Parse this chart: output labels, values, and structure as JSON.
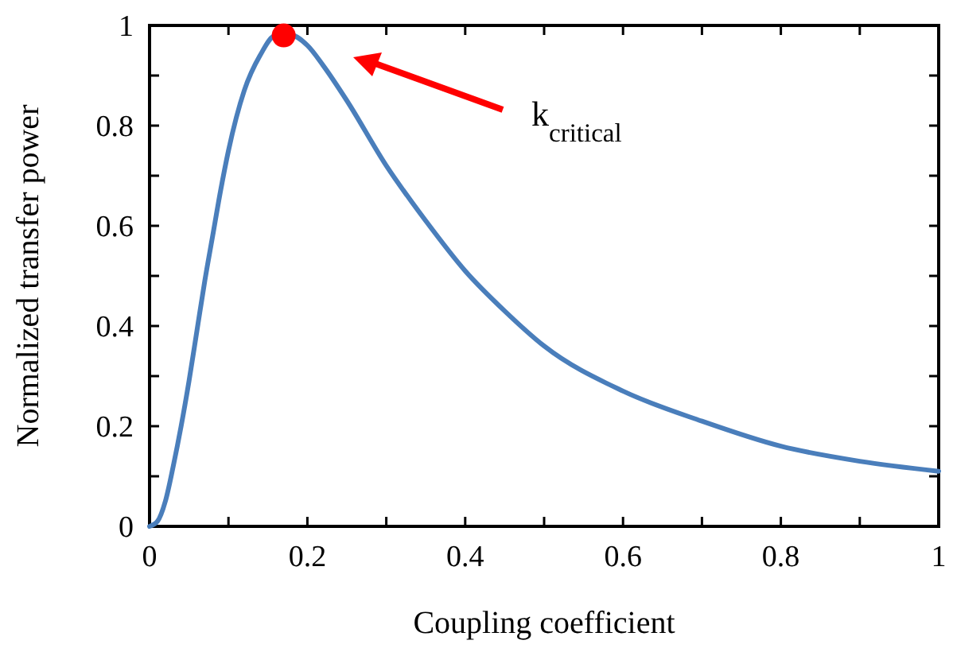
{
  "chart_data": {
    "type": "line",
    "xlabel": "Coupling coefficient",
    "ylabel": "Normalized transfer power",
    "xlim": [
      0,
      1
    ],
    "ylim": [
      0,
      1
    ],
    "xticks": [
      0,
      {
        "value": 0.1,
        "label": null
      },
      0.2,
      {
        "value": 0.3,
        "label": null
      },
      0.4,
      {
        "value": 0.5,
        "label": null
      },
      0.6,
      {
        "value": 0.7,
        "label": null
      },
      0.8,
      {
        "value": 0.9,
        "label": null
      },
      1
    ],
    "yticks": [
      0,
      {
        "value": 0.1,
        "label": null
      },
      0.2,
      {
        "value": 0.3,
        "label": null
      },
      0.4,
      {
        "value": 0.5,
        "label": null
      },
      0.6,
      {
        "value": 0.7,
        "label": null
      },
      0.8,
      {
        "value": 0.9,
        "label": null
      },
      1
    ],
    "grid": false,
    "series": [
      {
        "color": "#4a7ebb",
        "marker": "none",
        "line_style": "solid",
        "x": [
          0,
          0.01,
          0.02,
          0.03,
          0.04,
          0.05,
          0.06,
          0.07,
          0.08,
          0.09,
          0.1,
          0.12,
          0.14,
          0.16,
          0.18,
          0.2,
          0.22,
          0.25,
          0.3,
          0.35,
          0.4,
          0.45,
          0.5,
          0.6,
          0.7,
          0.8,
          0.9,
          1
        ],
        "values": [
          0,
          0.01,
          0.05,
          0.12,
          0.2,
          0.29,
          0.39,
          0.49,
          0.58,
          0.67,
          0.75,
          0.87,
          0.94,
          0.98,
          0.98,
          0.96,
          0.92,
          0.85,
          0.72,
          0.61,
          0.51,
          0.43,
          0.36,
          0.27,
          0.21,
          0.16,
          0.13,
          0.11
        ]
      },
      {
        "type": "scatter",
        "color": "#ff0000",
        "marker": "circle",
        "x": [
          0.17
        ],
        "values": [
          0.98
        ]
      }
    ],
    "annotations": [
      "k$_{critical}$"
    ]
  }
}
